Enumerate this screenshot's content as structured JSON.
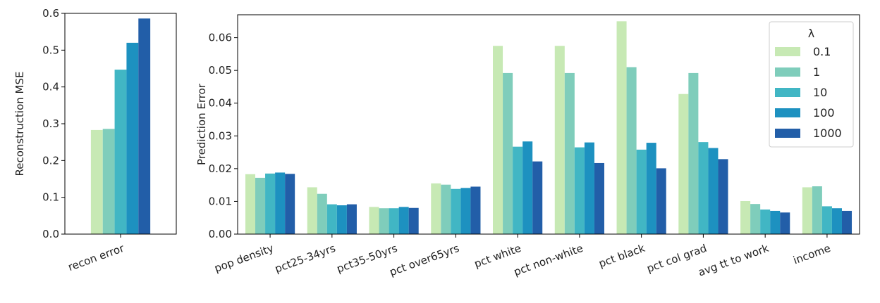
{
  "chart_data": [
    {
      "type": "bar",
      "categories": [
        "recon error"
      ],
      "series": [
        {
          "name": "0.1",
          "values": [
            0.283
          ]
        },
        {
          "name": "1",
          "values": [
            0.286
          ]
        },
        {
          "name": "10",
          "values": [
            0.447
          ]
        },
        {
          "name": "100",
          "values": [
            0.52
          ]
        },
        {
          "name": "1000",
          "values": [
            0.586
          ]
        }
      ],
      "ylabel": "Reconstruction MSE",
      "ylim": [
        0,
        0.6
      ],
      "yticks": [
        "0.0",
        "0.1",
        "0.2",
        "0.3",
        "0.4",
        "0.5",
        "0.6"
      ],
      "grid": false,
      "legend": "none"
    },
    {
      "type": "bar",
      "categories": [
        "pop density",
        "pct25-34yrs",
        "pct35-50yrs",
        "pct over65yrs",
        "pct white",
        "pct non-white",
        "pct black",
        "pct col grad",
        "avg tt to work",
        "income"
      ],
      "series": [
        {
          "name": "0.1",
          "values": [
            0.0183,
            0.0143,
            0.0083,
            0.0155,
            0.0575,
            0.0575,
            0.065,
            0.0428,
            0.0101,
            0.0143
          ]
        },
        {
          "name": "1",
          "values": [
            0.0172,
            0.0123,
            0.0079,
            0.0151,
            0.0492,
            0.0492,
            0.051,
            0.0492,
            0.0092,
            0.0146
          ]
        },
        {
          "name": "10",
          "values": [
            0.0185,
            0.0091,
            0.0079,
            0.0138,
            0.0267,
            0.0265,
            0.0258,
            0.0281,
            0.0075,
            0.0085
          ]
        },
        {
          "name": "100",
          "values": [
            0.0188,
            0.0088,
            0.0083,
            0.0141,
            0.0283,
            0.028,
            0.0279,
            0.0263,
            0.0071,
            0.0079
          ]
        },
        {
          "name": "1000",
          "values": [
            0.0184,
            0.0091,
            0.008,
            0.0145,
            0.0222,
            0.0217,
            0.0201,
            0.0229,
            0.0066,
            0.0071
          ]
        }
      ],
      "ylabel": "Prediction Error",
      "ylim": [
        0,
        0.067
      ],
      "yticks": [
        "0.00",
        "0.01",
        "0.02",
        "0.03",
        "0.04",
        "0.05",
        "0.06"
      ],
      "grid": false,
      "legend": "top-right",
      "legend_title": "λ"
    }
  ],
  "colors": [
    "#c7e9b4",
    "#7fcdbb",
    "#41b6c4",
    "#1d91c0",
    "#225ea8"
  ]
}
